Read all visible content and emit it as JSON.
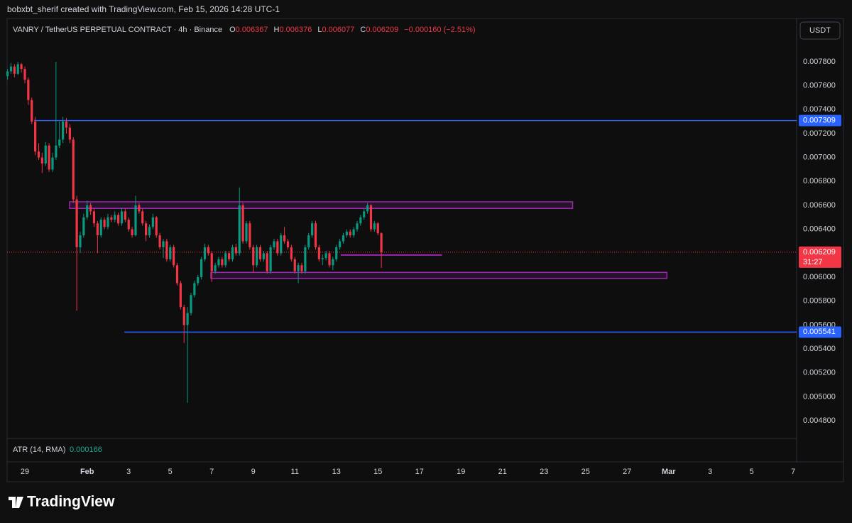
{
  "header": "bobxbt_sherif created with TradingView.com, Feb 15, 2026 14:28 UTC-1",
  "footer_logo": "TradingView",
  "chart_data": {
    "type": "candlestick",
    "title": "VANRY / TetherUS PERPETUAL CONTRACT · 4h · Binance",
    "ohlc_labels": [
      "O",
      "H",
      "L",
      "C"
    ],
    "change": "−0.000160 (−2.51%)",
    "currency_button": "USDT",
    "countdown": "31:27",
    "indicator": {
      "label": "ATR (14, RMA)",
      "value": 0.000166
    },
    "up_color": "#089981",
    "down_color": "#f23645",
    "xlim": [
      -20.5,
      891.9
    ],
    "xticks": [
      {
        "value": 0,
        "label": "29"
      },
      {
        "value": 72,
        "label": "Feb"
      },
      {
        "value": 120,
        "label": "3"
      },
      {
        "value": 168,
        "label": "5"
      },
      {
        "value": 216,
        "label": "7"
      },
      {
        "value": 264,
        "label": "9"
      },
      {
        "value": 312,
        "label": "11"
      },
      {
        "value": 360,
        "label": "13"
      },
      {
        "value": 408,
        "label": "15"
      },
      {
        "value": 456,
        "label": "17"
      },
      {
        "value": 504,
        "label": "19"
      },
      {
        "value": 552,
        "label": "21"
      },
      {
        "value": 600,
        "label": "23"
      },
      {
        "value": 648,
        "label": "25"
      },
      {
        "value": 696,
        "label": "27"
      },
      {
        "value": 744,
        "label": "Mar"
      },
      {
        "value": 792,
        "label": "3"
      },
      {
        "value": 840,
        "label": "5"
      },
      {
        "value": 888,
        "label": "7"
      }
    ],
    "ylim": [
      0.004664,
      0.008162
    ],
    "yticks": [
      {
        "value": 0.0078,
        "label": "0.007800"
      },
      {
        "value": 0.0076,
        "label": "0.007600"
      },
      {
        "value": 0.0074,
        "label": "0.007400"
      },
      {
        "value": 0.0072,
        "label": "0.007200"
      },
      {
        "value": 0.007,
        "label": "0.007000"
      },
      {
        "value": 0.0068,
        "label": "0.006800"
      },
      {
        "value": 0.0066,
        "label": "0.006600"
      },
      {
        "value": 0.0064,
        "label": "0.006400"
      },
      {
        "value": 0.0062,
        "label": "0.006200"
      },
      {
        "value": 0.006,
        "label": "0.006000"
      },
      {
        "value": 0.0058,
        "label": "0.005800"
      },
      {
        "value": 0.0056,
        "label": "0.005600"
      },
      {
        "value": 0.0054,
        "label": "0.005400"
      },
      {
        "value": 0.0052,
        "label": "0.005200"
      },
      {
        "value": 0.005,
        "label": "0.005000"
      },
      {
        "value": 0.0048,
        "label": "0.004800"
      }
    ],
    "grid": false,
    "candles": [
      [
        -20,
        0.00768,
        0.00774,
        0.00765,
        0.00772
      ],
      [
        -16,
        0.00772,
        0.00779,
        0.0077,
        0.00776
      ],
      [
        -12,
        0.00776,
        0.00778,
        0.00767,
        0.0077
      ],
      [
        -8,
        0.0077,
        0.0078,
        0.00769,
        0.00778
      ],
      [
        -4,
        0.00778,
        0.00779,
        0.00771,
        0.00774
      ],
      [
        0,
        0.00774,
        0.00776,
        0.00762,
        0.00765
      ],
      [
        4,
        0.00765,
        0.00767,
        0.00744,
        0.00748
      ],
      [
        8,
        0.00748,
        0.0075,
        0.00728,
        0.0073
      ],
      [
        12,
        0.0073,
        0.00734,
        0.00702,
        0.00705
      ],
      [
        16,
        0.00705,
        0.00712,
        0.00698,
        0.007
      ],
      [
        20,
        0.007,
        0.00704,
        0.00687,
        0.00695
      ],
      [
        24,
        0.00695,
        0.00713,
        0.00693,
        0.0071
      ],
      [
        28,
        0.0071,
        0.00712,
        0.00688,
        0.0069
      ],
      [
        32,
        0.0069,
        0.00704,
        0.00688,
        0.007
      ],
      [
        36,
        0.007,
        0.0078,
        0.00698,
        0.0071
      ],
      [
        40,
        0.0071,
        0.0073,
        0.00708,
        0.00715
      ],
      [
        44,
        0.00715,
        0.00734,
        0.00712,
        0.0073
      ],
      [
        48,
        0.0073,
        0.00733,
        0.0072,
        0.00725
      ],
      [
        52,
        0.00725,
        0.00728,
        0.00712,
        0.00715
      ],
      [
        56,
        0.00715,
        0.00717,
        0.00662,
        0.00665
      ],
      [
        60,
        0.00665,
        0.00668,
        0.00572,
        0.00625
      ],
      [
        64,
        0.00625,
        0.00638,
        0.0062,
        0.00635
      ],
      [
        68,
        0.00635,
        0.00653,
        0.00633,
        0.0065
      ],
      [
        72,
        0.0065,
        0.00664,
        0.00648,
        0.0066
      ],
      [
        76,
        0.0066,
        0.00662,
        0.00652,
        0.00655
      ],
      [
        80,
        0.00655,
        0.00657,
        0.00642,
        0.00645
      ],
      [
        84,
        0.00645,
        0.00647,
        0.0062,
        0.00635
      ],
      [
        88,
        0.00635,
        0.0065,
        0.00633,
        0.00648
      ],
      [
        92,
        0.00648,
        0.0065,
        0.0064,
        0.00642
      ],
      [
        96,
        0.00642,
        0.00653,
        0.0064,
        0.0065
      ],
      [
        100,
        0.0065,
        0.00652,
        0.00646,
        0.00648
      ],
      [
        104,
        0.00648,
        0.00655,
        0.00646,
        0.00652
      ],
      [
        108,
        0.00652,
        0.00654,
        0.00643,
        0.00645
      ],
      [
        112,
        0.00645,
        0.00658,
        0.00643,
        0.00655
      ],
      [
        116,
        0.00655,
        0.00657,
        0.00646,
        0.00648
      ],
      [
        120,
        0.00648,
        0.0065,
        0.00638,
        0.0064
      ],
      [
        124,
        0.0064,
        0.00642,
        0.00633,
        0.00635
      ],
      [
        128,
        0.00635,
        0.00668,
        0.00634,
        0.0066
      ],
      [
        132,
        0.0066,
        0.00662,
        0.00653,
        0.00655
      ],
      [
        136,
        0.00655,
        0.00657,
        0.00643,
        0.00645
      ],
      [
        140,
        0.00645,
        0.00647,
        0.0063,
        0.00635
      ],
      [
        144,
        0.00635,
        0.00644,
        0.00633,
        0.00642
      ],
      [
        148,
        0.00642,
        0.00653,
        0.0064,
        0.0065
      ],
      [
        152,
        0.0065,
        0.00651,
        0.00633,
        0.00635
      ],
      [
        156,
        0.00635,
        0.00637,
        0.00623,
        0.00625
      ],
      [
        160,
        0.00625,
        0.00632,
        0.00616,
        0.0063
      ],
      [
        164,
        0.0063,
        0.00632,
        0.00613,
        0.00615
      ],
      [
        168,
        0.00615,
        0.00627,
        0.00613,
        0.00625
      ],
      [
        172,
        0.00625,
        0.00627,
        0.00608,
        0.0061
      ],
      [
        176,
        0.0061,
        0.00612,
        0.00593,
        0.00595
      ],
      [
        180,
        0.00595,
        0.00597,
        0.00573,
        0.00575
      ],
      [
        184,
        0.00575,
        0.00577,
        0.00545,
        0.0056
      ],
      [
        188,
        0.0056,
        0.00575,
        0.00495,
        0.0057
      ],
      [
        192,
        0.0057,
        0.00587,
        0.00568,
        0.00585
      ],
      [
        196,
        0.00585,
        0.00597,
        0.00583,
        0.00595
      ],
      [
        200,
        0.00595,
        0.00602,
        0.00593,
        0.006
      ],
      [
        204,
        0.006,
        0.00617,
        0.00598,
        0.00615
      ],
      [
        208,
        0.00615,
        0.00628,
        0.00613,
        0.00625
      ],
      [
        212,
        0.00625,
        0.00627,
        0.00618,
        0.0062
      ],
      [
        216,
        0.0062,
        0.00622,
        0.00596,
        0.00605
      ],
      [
        220,
        0.00605,
        0.00612,
        0.00603,
        0.0061
      ],
      [
        224,
        0.0061,
        0.00617,
        0.00608,
        0.00615
      ],
      [
        228,
        0.00615,
        0.00617,
        0.00608,
        0.0061
      ],
      [
        232,
        0.0061,
        0.00622,
        0.00608,
        0.0062
      ],
      [
        236,
        0.0062,
        0.00622,
        0.00613,
        0.00615
      ],
      [
        240,
        0.00615,
        0.00627,
        0.00613,
        0.00625
      ],
      [
        244,
        0.00625,
        0.00628,
        0.00618,
        0.0062
      ],
      [
        248,
        0.0062,
        0.00675,
        0.00618,
        0.0066
      ],
      [
        252,
        0.0066,
        0.00662,
        0.00628,
        0.0063
      ],
      [
        256,
        0.0063,
        0.00647,
        0.00628,
        0.00645
      ],
      [
        260,
        0.00645,
        0.00647,
        0.00623,
        0.00625
      ],
      [
        264,
        0.00625,
        0.00627,
        0.00604,
        0.0061
      ],
      [
        268,
        0.0061,
        0.00627,
        0.00608,
        0.00625
      ],
      [
        272,
        0.00625,
        0.00627,
        0.00613,
        0.00615
      ],
      [
        276,
        0.00615,
        0.00622,
        0.00613,
        0.0062
      ],
      [
        280,
        0.0062,
        0.00622,
        0.00603,
        0.00605
      ],
      [
        284,
        0.00605,
        0.00627,
        0.00603,
        0.00625
      ],
      [
        288,
        0.00625,
        0.00632,
        0.00623,
        0.0063
      ],
      [
        292,
        0.0063,
        0.00632,
        0.00618,
        0.0062
      ],
      [
        296,
        0.0062,
        0.00637,
        0.00618,
        0.00635
      ],
      [
        300,
        0.00635,
        0.00642,
        0.00628,
        0.0063
      ],
      [
        304,
        0.0063,
        0.00632,
        0.00623,
        0.00625
      ],
      [
        308,
        0.00625,
        0.00627,
        0.00613,
        0.00615
      ],
      [
        312,
        0.00615,
        0.00617,
        0.00603,
        0.00605
      ],
      [
        316,
        0.00605,
        0.00612,
        0.00595,
        0.0061
      ],
      [
        320,
        0.0061,
        0.00612,
        0.00603,
        0.00605
      ],
      [
        324,
        0.00605,
        0.00627,
        0.00603,
        0.00625
      ],
      [
        328,
        0.00625,
        0.00637,
        0.00623,
        0.00635
      ],
      [
        332,
        0.00635,
        0.00647,
        0.00633,
        0.00645
      ],
      [
        336,
        0.00645,
        0.00647,
        0.00623,
        0.00625
      ],
      [
        340,
        0.00625,
        0.00627,
        0.00613,
        0.00615
      ],
      [
        344,
        0.00615,
        0.00619,
        0.0061,
        0.00616
      ],
      [
        348,
        0.00616,
        0.00622,
        0.00614,
        0.0062
      ],
      [
        352,
        0.0062,
        0.00622,
        0.00608,
        0.0061
      ],
      [
        356,
        0.0061,
        0.00617,
        0.00606,
        0.00615
      ],
      [
        360,
        0.00615,
        0.00627,
        0.00613,
        0.00625
      ],
      [
        364,
        0.00625,
        0.00632,
        0.00623,
        0.0063
      ],
      [
        368,
        0.0063,
        0.00637,
        0.00628,
        0.00635
      ],
      [
        372,
        0.00635,
        0.0064,
        0.00633,
        0.00638
      ],
      [
        376,
        0.00638,
        0.0064,
        0.00633,
        0.00635
      ],
      [
        380,
        0.00635,
        0.00642,
        0.00633,
        0.0064
      ],
      [
        384,
        0.0064,
        0.00647,
        0.00638,
        0.00645
      ],
      [
        388,
        0.00645,
        0.00652,
        0.00643,
        0.0065
      ],
      [
        392,
        0.0065,
        0.00657,
        0.00648,
        0.00655
      ],
      [
        396,
        0.00655,
        0.00662,
        0.00653,
        0.0066
      ],
      [
        400,
        0.0066,
        0.00661,
        0.00638,
        0.0064
      ],
      [
        404,
        0.0064,
        0.00647,
        0.00638,
        0.00645
      ],
      [
        408,
        0.00645,
        0.00646,
        0.00635,
        0.006367
      ],
      [
        412,
        0.006367,
        0.006376,
        0.006077,
        0.006209
      ]
    ],
    "drawings": {
      "hlines": [
        {
          "price": 0.007309,
          "t_start": 10.7,
          "color": "#2962ff"
        },
        {
          "price": 0.005541,
          "t_start": 115,
          "color": "#2962ff"
        }
      ],
      "boxes": [
        {
          "t0": 51.7,
          "t1": 633,
          "top": 0.00663,
          "bottom": 0.006575,
          "color": "#9c27b0"
        },
        {
          "t0": 215,
          "t1": 742,
          "top": 0.00604,
          "bottom": 0.00599,
          "color": "#9c27b0"
        }
      ],
      "segments": [
        {
          "t0": 365,
          "t1": 482,
          "price": 0.006185,
          "color": "#9c27b0"
        }
      ]
    }
  }
}
